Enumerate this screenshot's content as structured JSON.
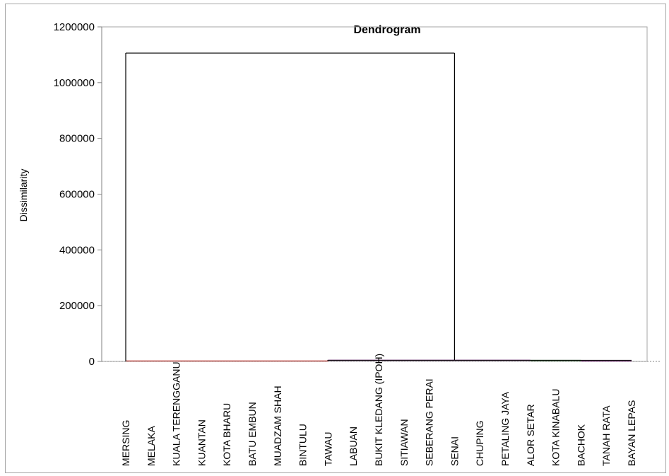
{
  "chart_data": {
    "type": "dendrogram",
    "title": "Dendrogram",
    "ylabel": "Dissimilarity",
    "xlabel": "",
    "ylim": [
      0,
      1200000
    ],
    "yticks": [
      0,
      200000,
      400000,
      600000,
      800000,
      1000000,
      1200000
    ],
    "ytick_labels": [
      "0",
      "200000",
      "400000",
      "600000",
      "800000",
      "1000000",
      "1200000"
    ],
    "grid": false,
    "leaves": [
      "MERSING",
      "MELAKA",
      "KUALA TERENGGANU",
      "KUANTAN",
      "KOTA BHARU",
      "BATU EMBUN",
      "MUADZAM SHAH",
      "BINTULU",
      "TAWAU",
      "LABUAN",
      "BUKIT KLEDANG (IPOH)",
      "SITIAWAN",
      "SEBERANG PERAI",
      "SENAI",
      "CHUPING",
      "PETALING JAYA",
      "ALOR SETAR",
      "KOTA KINABALU",
      "BACHOK",
      "TANAH RATA",
      "BAYAN LEPAS"
    ],
    "merges": [
      {
        "left_from": 0,
        "left_to": 8,
        "right_from": 8,
        "right_to": 20,
        "left_height": 0,
        "right_height": 4000,
        "height": 1106000,
        "color": "#000000"
      }
    ],
    "low_level_clusters": [
      {
        "from": 0,
        "to": 8,
        "height": 1500,
        "color": "#c0504d"
      },
      {
        "from": 8,
        "to": 16,
        "height": 4000,
        "color": "#8b3a8f"
      },
      {
        "from": 16,
        "to": 18,
        "height": 3500,
        "color": "#2e7d32"
      },
      {
        "from": 18,
        "to": 20,
        "height": 1500,
        "color": "#7f3f7f"
      }
    ],
    "baseline_color": "#808080"
  }
}
